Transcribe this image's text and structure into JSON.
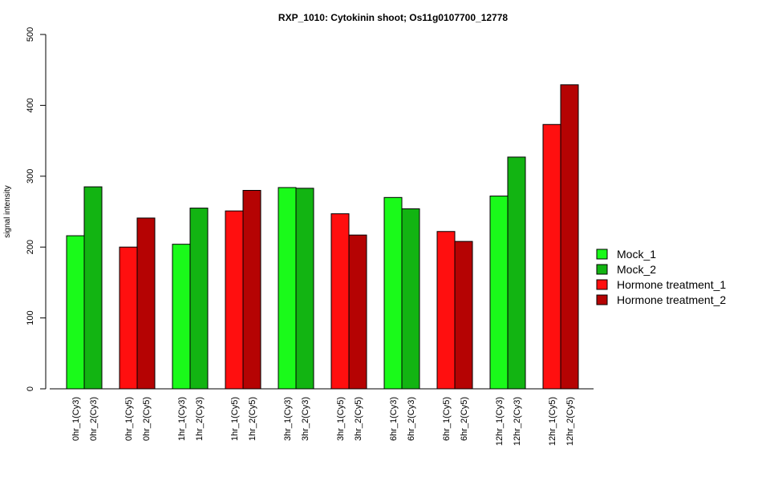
{
  "chart_data": {
    "type": "bar",
    "title": "RXP_1010: Cytokinin shoot; Os11g0107700_12778",
    "xlabel": "",
    "ylabel": "signal intensity",
    "ylim": [
      0,
      500
    ],
    "yticks": [
      0,
      100,
      200,
      300,
      400,
      500
    ],
    "grid": false,
    "legend_position": "right",
    "categories": [
      "0hr_1(Cy3)",
      "0hr_2(Cy3)",
      "0hr_1(Cy5)",
      "0hr_2(Cy5)",
      "1hr_1(Cy3)",
      "1hr_2(Cy3)",
      "1hr_1(Cy5)",
      "1hr_2(Cy5)",
      "3hr_1(Cy3)",
      "3hr_2(Cy3)",
      "3hr_1(Cy5)",
      "3hr_2(Cy5)",
      "6hr_1(Cy3)",
      "6hr_2(Cy3)",
      "6hr_1(Cy5)",
      "6hr_2(Cy5)",
      "12hr_1(Cy3)",
      "12hr_2(Cy3)",
      "12hr_1(Cy5)",
      "12hr_2(Cy5)"
    ],
    "values": [
      216,
      285,
      200,
      241,
      204,
      255,
      251,
      280,
      284,
      283,
      247,
      217,
      270,
      254,
      222,
      208,
      272,
      327,
      373,
      429
    ],
    "bar_series": [
      0,
      1,
      2,
      3,
      0,
      1,
      2,
      3,
      0,
      1,
      2,
      3,
      0,
      1,
      2,
      3,
      0,
      1,
      2,
      3
    ],
    "series": [
      {
        "name": "Mock_1",
        "color": "#1afa1a"
      },
      {
        "name": "Mock_2",
        "color": "#12b412"
      },
      {
        "name": "Hormone treatment_1",
        "color": "#ff0f0f"
      },
      {
        "name": "Hormone treatment_2",
        "color": "#b50303"
      }
    ]
  }
}
